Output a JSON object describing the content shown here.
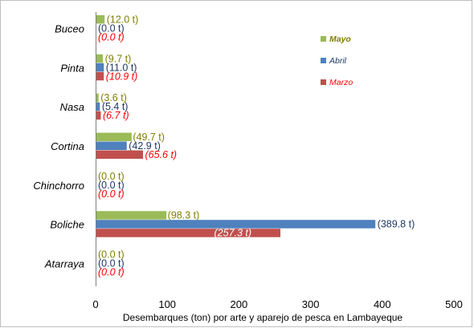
{
  "chart_data": {
    "type": "bar",
    "orientation": "horizontal",
    "xlabel": "Desembarques (ton) por arte y aparejo de pesca en Lambayeque",
    "ylabel": "",
    "xlim": [
      0,
      500
    ],
    "xticks": [
      "0",
      "100",
      "200",
      "300",
      "400",
      "500"
    ],
    "grid": false,
    "legend_position": "top-right",
    "categories": [
      "Buceo",
      "Pinta",
      "Nasa",
      "Cortina",
      "Chinchorro",
      "Boliche",
      "Atarraya"
    ],
    "series": [
      {
        "name": "Mayo",
        "color": "#9bbb59",
        "label_color": "#7f7f00",
        "label_italic": false,
        "values": [
          12.0,
          9.7,
          3.6,
          49.7,
          0.0,
          98.3,
          0.0
        ],
        "labels": [
          "(12.0 t)",
          "(9.7 t)",
          "(3.6 t)",
          "(49.7 t)",
          "(0.0 t)",
          "(98.3 t)",
          "(0.0 t)"
        ]
      },
      {
        "name": "Abril",
        "color": "#4f81bd",
        "label_color": "#1f3864",
        "label_italic": false,
        "values": [
          0.0,
          11.0,
          5.4,
          42.9,
          0.0,
          389.8,
          0.0
        ],
        "labels": [
          "(0.0 t)",
          "(11.0 t)",
          "(5.4 t)",
          "(42.9 t)",
          "(0.0 t)",
          "(389.8 t)",
          "(0.0 t)"
        ]
      },
      {
        "name": "Marzo",
        "color": "#c0504d",
        "label_color": "#ff0000",
        "label_italic": true,
        "values": [
          0.0,
          10.9,
          6.7,
          65.6,
          0.0,
          257.3,
          0.0
        ],
        "labels": [
          "(0.0 t)",
          "(10.9 t)",
          "(6.7 t)",
          "(65.6 t)",
          "(0.0 t)",
          "(257.3 t)",
          "(0.0 t)"
        ]
      }
    ]
  }
}
